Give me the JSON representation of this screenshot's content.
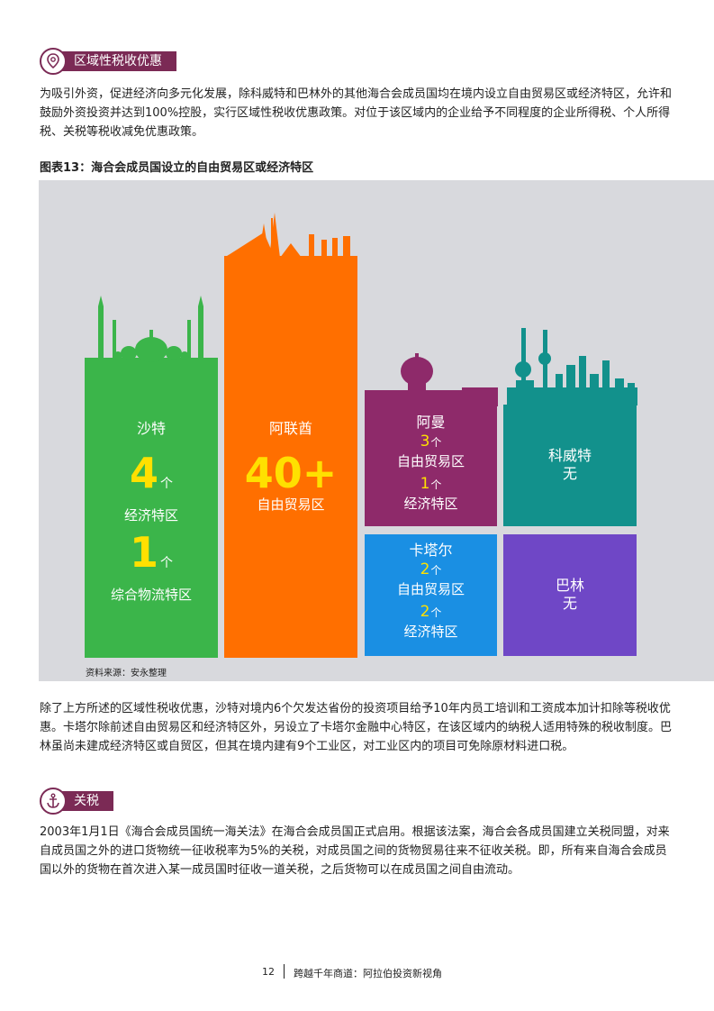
{
  "section1": {
    "title": "区域性税收优惠",
    "paragraph": "为吸引外资，促进经济向多元化发展，除科威特和巴林外的其他海合会成员国均在境内设立自由贸易区或经济特区，允许和鼓励外资投资并达到100%控股，实行区域性税收优惠政策。对位于该区域内的企业给予不同程度的企业所得税、个人所得税、关税等税收减免优惠政策。"
  },
  "figure": {
    "title": "图表13：海合会成员国设立的自由贸易区或经济特区",
    "source": "资料来源：安永整理",
    "saudi": {
      "name": "沙特",
      "num1": "4",
      "unit1": "个",
      "label1": "经济特区",
      "num2": "1",
      "unit2": "个",
      "label2": "综合物流特区"
    },
    "uae": {
      "name": "阿联酋",
      "num": "40+",
      "label": "自由贸易区"
    },
    "oman": {
      "name": "阿曼",
      "num1": "3",
      "unit1": "个",
      "label1": "自由贸易区",
      "num2": "1",
      "unit2": "个",
      "label2": "经济特区"
    },
    "qatar": {
      "name": "卡塔尔",
      "num1": "2",
      "unit1": "个",
      "label1": "自由贸易区",
      "num2": "2",
      "unit2": "个",
      "label2": "经济特区"
    },
    "kuwait": {
      "name": "科威特",
      "value": "无"
    },
    "bahrain": {
      "name": "巴林",
      "value": "无"
    }
  },
  "paragraph2": "除了上方所述的区域性税收优惠，沙特对境内6个欠发达省份的投资项目给予10年内员工培训和工资成本加计扣除等税收优惠。卡塔尔除前述自由贸易区和经济特区外，另设立了卡塔尔金融中心特区，在该区域内的纳税人适用特殊的税收制度。巴林虽尚未建成经济特区或自贸区，但其在境内建有9个工业区，对工业区内的项目可免除原材料进口税。",
  "section2": {
    "title": "关税",
    "paragraph": "2003年1月1日《海合会成员国统一海关法》在海合会成员国正式启用。根据该法案，海合会各成员国建立关税同盟，对来自成员国之外的进口货物统一征收税率为5%的关税，对成员国之间的货物贸易往来不征收关税。即，所有来自海合会成员国以外的货物在首次进入某一成员国时征收一道关税，之后货物可以在成员国之间自由流动。"
  },
  "footer": {
    "page": "12",
    "title": "跨越千年商道：阿拉伯投资新视角"
  },
  "colors": {
    "accent": "#7b2a55",
    "saudi": "#3bb54a",
    "uae": "#ff6f00",
    "oman": "#8e2a6a",
    "kuwait": "#12918c",
    "qatar": "#1a8fe3",
    "bahrain": "#6f47c6",
    "highlight": "#ffe000"
  }
}
